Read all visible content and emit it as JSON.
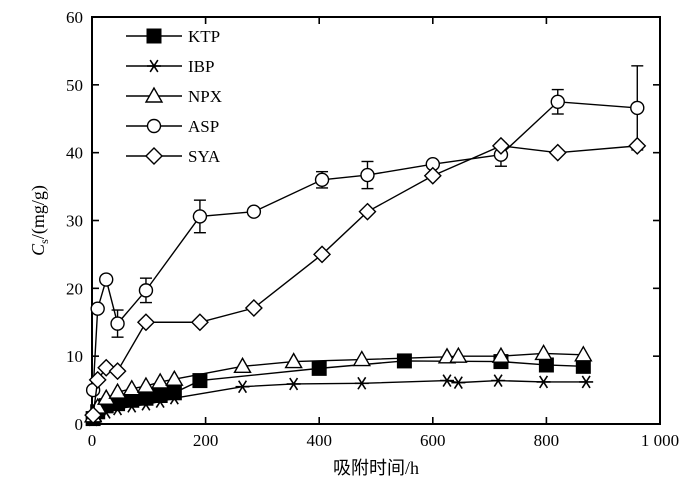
{
  "chart_data": {
    "type": "line",
    "xlabel": "吸附时间/h",
    "ylabel_main": "C",
    "ylabel_sub": "s",
    "ylabel_unit": "/(mg/g)",
    "xlim": [
      0,
      1000
    ],
    "ylim": [
      0,
      60
    ],
    "x_ticks": [
      0,
      200,
      400,
      600,
      800,
      1000
    ],
    "x_tick_labels": [
      "0",
      "200",
      "400",
      "600",
      "800",
      "1 000"
    ],
    "y_ticks": [
      0,
      10,
      20,
      30,
      40,
      50,
      60
    ],
    "y_tick_labels": [
      "0",
      "10",
      "20",
      "30",
      "40",
      "50",
      "60"
    ],
    "grid": false,
    "legend_position": "top-left",
    "series": [
      {
        "name": "KTP",
        "marker": "square-filled",
        "x": [
          2,
          10,
          25,
          45,
          70,
          95,
          120,
          145,
          190,
          400,
          550,
          720,
          800,
          865
        ],
        "y": [
          0.8,
          1.8,
          2.7,
          3.0,
          3.5,
          3.8,
          4.2,
          4.6,
          6.4,
          8.2,
          9.3,
          9.2,
          8.7,
          8.5
        ],
        "err": [
          0,
          0,
          0,
          0,
          0,
          0,
          0,
          0,
          0,
          0,
          0,
          0,
          0,
          0
        ]
      },
      {
        "name": "IBP",
        "marker": "asterisk",
        "x": [
          2,
          10,
          25,
          45,
          70,
          95,
          120,
          145,
          265,
          355,
          475,
          625,
          645,
          715,
          795,
          870
        ],
        "y": [
          0.6,
          1.2,
          1.7,
          2.2,
          2.6,
          2.9,
          3.3,
          3.8,
          5.5,
          5.9,
          6.0,
          6.4,
          6.1,
          6.4,
          6.2,
          6.2
        ],
        "err": [
          0,
          0,
          0,
          0,
          0,
          0,
          0,
          0,
          0,
          0,
          0,
          0,
          0,
          0,
          0,
          0
        ]
      },
      {
        "name": "NPX",
        "marker": "triangle-open",
        "x": [
          2,
          10,
          25,
          45,
          70,
          95,
          120,
          145,
          265,
          355,
          475,
          625,
          645,
          720,
          795,
          865
        ],
        "y": [
          1.2,
          2.5,
          3.8,
          4.7,
          5.2,
          5.6,
          6.2,
          6.6,
          8.5,
          9.2,
          9.5,
          9.9,
          10.0,
          10.0,
          10.4,
          10.2
        ],
        "err": [
          0,
          0,
          0,
          0,
          0,
          0,
          0,
          0,
          0,
          0,
          0,
          0,
          0,
          0,
          0,
          0
        ]
      },
      {
        "name": "ASP",
        "marker": "circle-open",
        "x": [
          2,
          10,
          25,
          45,
          95,
          190,
          285,
          405,
          485,
          600,
          720,
          820,
          960
        ],
        "y": [
          5.0,
          17.0,
          21.3,
          14.8,
          19.7,
          30.6,
          31.3,
          36.0,
          36.7,
          38.3,
          39.7,
          47.5,
          46.6
        ],
        "err": [
          0,
          0,
          0,
          2.0,
          1.8,
          2.4,
          0.5,
          1.2,
          2.0,
          0.4,
          1.7,
          1.8,
          6.2
        ]
      },
      {
        "name": "SYA",
        "marker": "diamond-open",
        "x": [
          2,
          10,
          25,
          45,
          95,
          190,
          285,
          405,
          485,
          600,
          720,
          820,
          960
        ],
        "y": [
          1.3,
          6.5,
          8.3,
          7.8,
          15.0,
          15.0,
          17.1,
          25.0,
          31.3,
          36.6,
          41.0,
          40.0,
          41.0
        ],
        "err": [
          0,
          0,
          0,
          0,
          0,
          0,
          0,
          0,
          0,
          0,
          0,
          0,
          0
        ]
      }
    ]
  }
}
